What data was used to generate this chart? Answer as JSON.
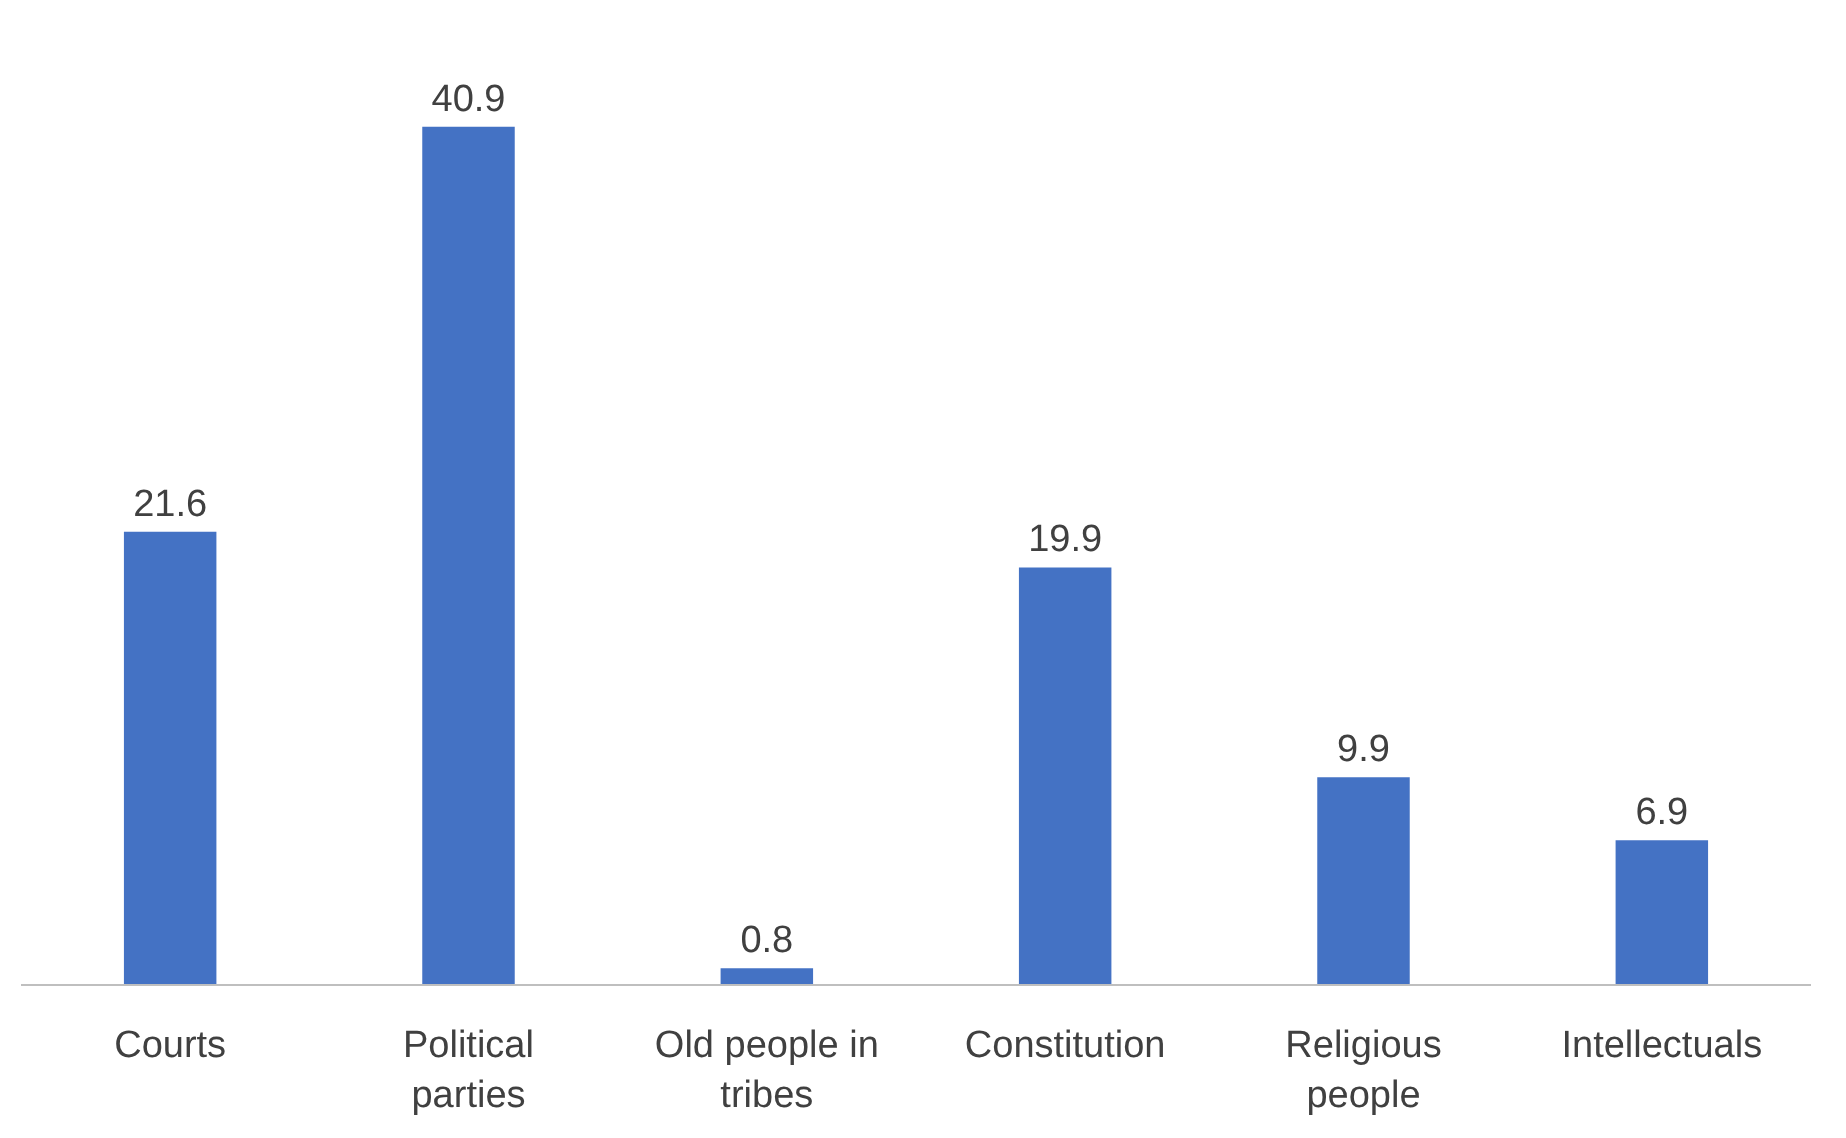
{
  "chart_data": {
    "type": "bar",
    "categories": [
      "Courts",
      "Political\nparties",
      "Old people in\ntribes",
      "Constitution",
      "Religious\npeople",
      "Intellectuals"
    ],
    "values": [
      21.6,
      40.9,
      0.8,
      19.9,
      9.9,
      6.9
    ],
    "color": "#4472c4",
    "data_labels": true
  }
}
